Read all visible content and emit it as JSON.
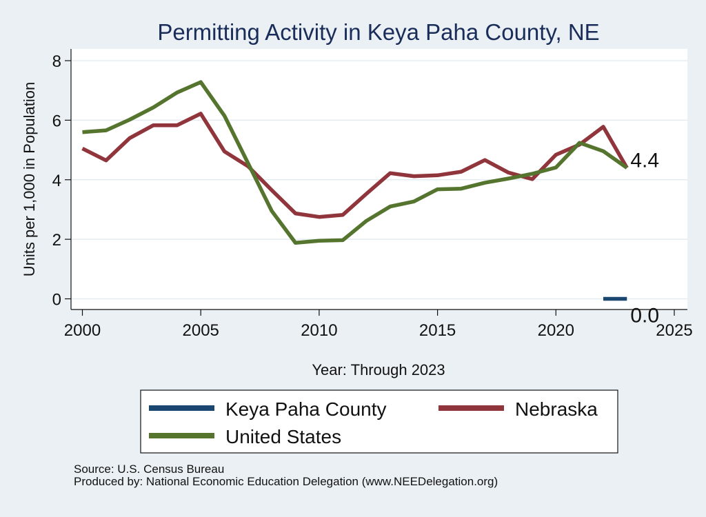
{
  "chart_data": {
    "type": "line",
    "title": "Permitting Activity in Keya Paha County, NE",
    "xlabel": "Year: Through 2023",
    "ylabel": "Units per 1,000 in Population",
    "xlim": [
      2000,
      2025
    ],
    "ylim": [
      0,
      8
    ],
    "xticks": [
      2000,
      2005,
      2010,
      2015,
      2020,
      2025
    ],
    "yticks": [
      0,
      2,
      4,
      6,
      8
    ],
    "grid": true,
    "legend_position": "bottom",
    "series": [
      {
        "name": "Keya Paha County",
        "color": "#1a476f",
        "x": [
          2022,
          2023
        ],
        "values": [
          0.0,
          0.0
        ],
        "end_label": "0.0"
      },
      {
        "name": "Nebraska",
        "color": "#90353b",
        "x": [
          2000,
          2001,
          2002,
          2003,
          2004,
          2005,
          2006,
          2007,
          2008,
          2009,
          2010,
          2011,
          2012,
          2013,
          2014,
          2015,
          2016,
          2017,
          2018,
          2019,
          2020,
          2021,
          2022,
          2023
        ],
        "values": [
          5.05,
          4.65,
          5.4,
          5.83,
          5.83,
          6.22,
          4.95,
          4.45,
          3.65,
          2.87,
          2.75,
          2.82,
          3.53,
          4.22,
          4.12,
          4.15,
          4.27,
          4.66,
          4.24,
          4.02,
          4.84,
          5.18,
          5.78,
          4.4
        ],
        "end_label": "4.4"
      },
      {
        "name": "United States",
        "color": "#55752f",
        "x": [
          2000,
          2001,
          2002,
          2003,
          2004,
          2005,
          2006,
          2007,
          2008,
          2009,
          2010,
          2011,
          2012,
          2013,
          2014,
          2015,
          2016,
          2017,
          2018,
          2019,
          2020,
          2021,
          2022,
          2023
        ],
        "values": [
          5.6,
          5.66,
          6.02,
          6.43,
          6.93,
          7.28,
          6.15,
          4.55,
          2.95,
          1.88,
          1.95,
          1.97,
          2.62,
          3.1,
          3.27,
          3.68,
          3.7,
          3.9,
          4.04,
          4.2,
          4.41,
          5.24,
          4.96,
          4.4
        ]
      }
    ]
  },
  "source_notes": {
    "source": "Source: U.S. Census Bureau",
    "produced_by": "Produced by: National Economic Education Delegation (www.NEEDelegation.org)"
  }
}
